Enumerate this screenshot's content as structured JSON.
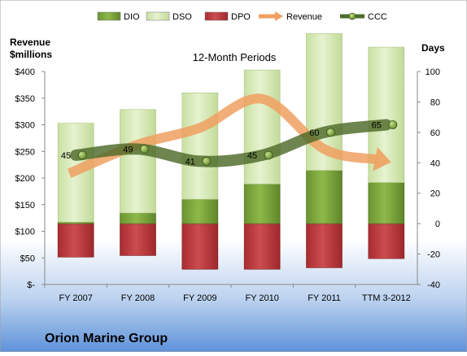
{
  "chart_data": {
    "type": "bar",
    "title": "12-Month Periods",
    "company": "Orion Marine Group",
    "left_axis": {
      "label_line1": "Revenue",
      "label_line2": "$millions",
      "min": 0,
      "max": 400,
      "step": 50,
      "ticks": [
        "$-",
        "$50",
        "$100",
        "$150",
        "$200",
        "$250",
        "$300",
        "$350",
        "$400"
      ]
    },
    "right_axis": {
      "label": "Days",
      "min": -40,
      "max": 100,
      "step": 20,
      "ticks": [
        "-40",
        "-20",
        "0",
        "20",
        "40",
        "60",
        "80",
        "100"
      ]
    },
    "categories": [
      "FY 2007",
      "FY 2008",
      "FY 2009",
      "FY 2010",
      "FY 2011",
      "TTM 3-2012"
    ],
    "legend": {
      "position": "top",
      "items": [
        {
          "name": "DIO",
          "color": "#7aa33a"
        },
        {
          "name": "DSO",
          "color": "#d6eab6"
        },
        {
          "name": "DPO",
          "color": "#b8373b"
        },
        {
          "name": "Revenue",
          "color": "#f0a060"
        },
        {
          "name": "CCC",
          "color": "#5a7a30"
        }
      ]
    },
    "days_series": {
      "DPO": [
        -22,
        -21,
        -30,
        -30,
        -29,
        -23
      ],
      "DIO": [
        1,
        7,
        16,
        26,
        35,
        27
      ],
      "DSO": [
        65,
        68,
        70,
        75,
        90,
        89
      ]
    },
    "revenue": [
      33,
      52,
      63,
      82,
      49,
      41
    ],
    "ccc": {
      "values": [
        45,
        49,
        41,
        45,
        60,
        65
      ],
      "labels": [
        "45",
        "49",
        "41",
        "45",
        "60",
        "65"
      ]
    },
    "colors": {
      "background_top": "#ffffff",
      "background_bottom": "#5e92d9",
      "dio": "#7aa33a",
      "dso": "#d6eab6",
      "dpo": "#b8373b",
      "revenue": "#f0a060",
      "ccc": "#4e6a2a"
    }
  }
}
